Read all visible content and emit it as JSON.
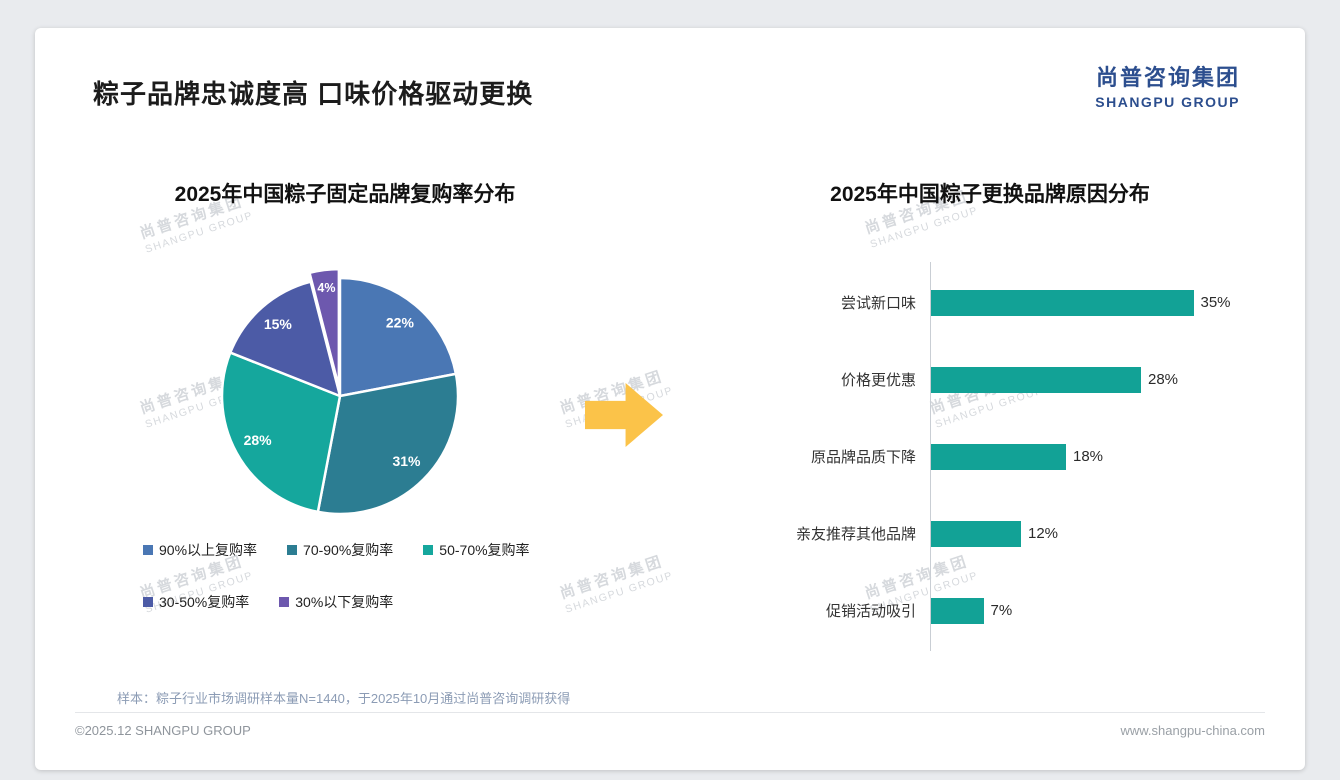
{
  "page": {
    "title": "粽子品牌忠诚度高 口味价格驱动更换",
    "sample_note": "样本：粽子行业市场调研样本量N=1440，于2025年10月通过尚普咨询调研获得",
    "footer_left": "©2025.12 SHANGPU GROUP",
    "footer_right": "www.shangpu-china.com"
  },
  "logo": {
    "cn": "尚普咨询集团",
    "en": "SHANGPU GROUP"
  },
  "watermark": {
    "cn": "尚普咨询集团",
    "en": "SHANGPU GROUP"
  },
  "colors": {
    "arrow": "#fbc349",
    "bar": "#12a296",
    "accent_navy": "#2c4e8e"
  },
  "chart_data": [
    {
      "type": "pie",
      "title": "2025年中国粽子固定品牌复购率分布",
      "labels": [
        "90%以上复购率",
        "70-90%复购率",
        "50-70%复购率",
        "30-50%复购率",
        "30%以下复购率"
      ],
      "values": [
        22,
        31,
        28,
        15,
        4
      ],
      "colors": [
        "#4a77b4",
        "#2c7d92",
        "#15a79d",
        "#4c5ba6",
        "#6d58ae"
      ],
      "legend_position": "bottom",
      "data_labels": [
        "22%",
        "31%",
        "28%",
        "15%",
        "4%"
      ]
    },
    {
      "type": "bar",
      "orientation": "horizontal",
      "title": "2025年中国粽子更换品牌原因分布",
      "categories": [
        "尝试新口味",
        "价格更优惠",
        "原品牌品质下降",
        "亲友推荐其他品牌",
        "促销活动吸引"
      ],
      "values": [
        35,
        28,
        18,
        12,
        7
      ],
      "value_labels": [
        "35%",
        "28%",
        "18%",
        "12%",
        "7%"
      ],
      "color": "#12a296",
      "xlim": [
        0,
        40
      ],
      "grid": false
    }
  ]
}
